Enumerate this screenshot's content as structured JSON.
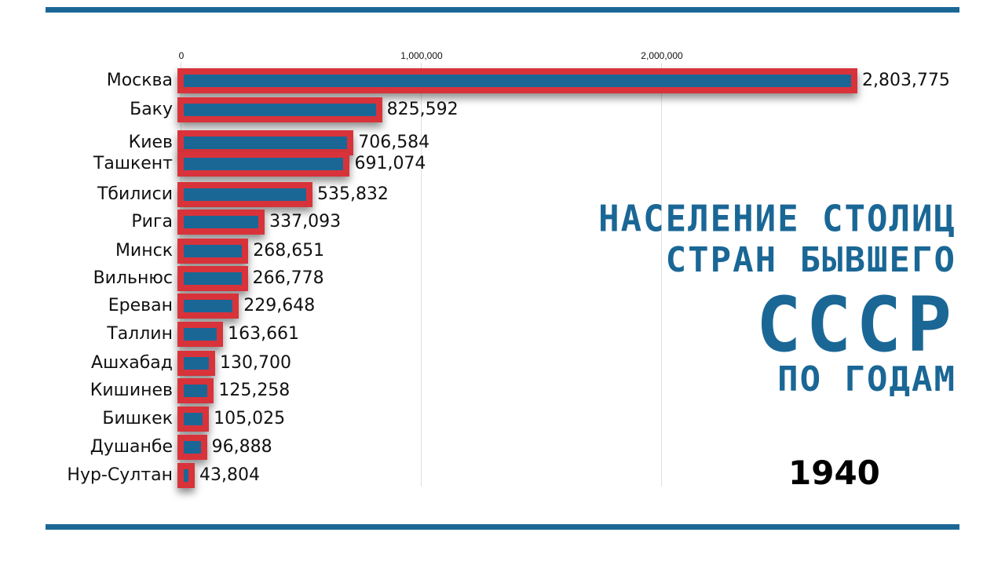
{
  "header": {
    "title_lines": [
      "НАСЕЛЕНИЕ СТОЛИЦ",
      "СТРАН БЫВШЕГО",
      "СССР",
      "ПО ГОДАМ"
    ],
    "year": "1940"
  },
  "colors": {
    "bar_fill": "#1a6796",
    "bar_border": "#d8333a",
    "title": "#1a6796",
    "rules": "#1a6796"
  },
  "axis": {
    "ticks": [
      "0",
      "1,000,000",
      "2,000,000"
    ]
  },
  "rows": [
    {
      "label": "Москва",
      "value": "2,803,775"
    },
    {
      "label": "Баку",
      "value": "825,592"
    },
    {
      "label": "Киев",
      "value": "706,584"
    },
    {
      "label": "Ташкент",
      "value": "691,074"
    },
    {
      "label": "Тбилиси",
      "value": "535,832"
    },
    {
      "label": "Рига",
      "value": "337,093"
    },
    {
      "label": "Минск",
      "value": "268,651"
    },
    {
      "label": "Вильнюс",
      "value": "266,778"
    },
    {
      "label": "Ереван",
      "value": "229,648"
    },
    {
      "label": "Таллин",
      "value": "163,661"
    },
    {
      "label": "Ашхабад",
      "value": "130,700"
    },
    {
      "label": "Кишинев",
      "value": "125,258"
    },
    {
      "label": "Бишкек",
      "value": "105,025"
    },
    {
      "label": "Душанбе",
      "value": "96,888"
    },
    {
      "label": "Нур-Султан",
      "value": "43,804"
    }
  ],
  "chart_data": {
    "type": "bar",
    "orientation": "horizontal",
    "title": "Население столиц стран бывшего СССР по годам",
    "subtitle": "1940",
    "categories": [
      "Москва",
      "Баку",
      "Киев",
      "Ташкент",
      "Тбилиси",
      "Рига",
      "Минск",
      "Вильнюс",
      "Ереван",
      "Таллин",
      "Ашхабад",
      "Кишинев",
      "Бишкек",
      "Душанбе",
      "Нур-Султан"
    ],
    "values": [
      2803775,
      825592,
      706584,
      691074,
      535832,
      337093,
      268651,
      266778,
      229648,
      163661,
      130700,
      125258,
      105025,
      96888,
      43804
    ],
    "xlabel": "",
    "ylabel": "",
    "xticks": [
      0,
      1000000,
      2000000
    ],
    "xlim": [
      0,
      2830000
    ],
    "grid": true,
    "legend": null
  }
}
